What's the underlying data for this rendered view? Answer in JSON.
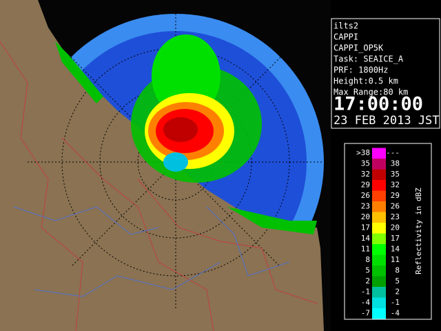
{
  "info": {
    "lines": [
      "ilts2",
      "CAPPI",
      "CAPPI_OP5K",
      "Task: SEAICE_A",
      "PRF: 1800Hz",
      "Height:0.5 km",
      "Max Range:80 km"
    ],
    "time": "17:00:00",
    "date": "23 FEB 2013 JST"
  },
  "legend": {
    "title": "Reflectivity in dBZ",
    "rows": [
      {
        "low": ">38",
        "high": "---",
        "color": "#ff00ff"
      },
      {
        "low": "35",
        "high": "38",
        "color": "#c00060"
      },
      {
        "low": "32",
        "high": "35",
        "color": "#c00000"
      },
      {
        "low": "29",
        "high": "32",
        "color": "#ff0000"
      },
      {
        "low": "26",
        "high": "29",
        "color": "#ff4000"
      },
      {
        "low": "23",
        "high": "26",
        "color": "#ff8000"
      },
      {
        "low": "20",
        "high": "23",
        "color": "#ffc000"
      },
      {
        "low": "17",
        "high": "20",
        "color": "#ffff00"
      },
      {
        "low": "14",
        "high": "17",
        "color": "#80ff00"
      },
      {
        "low": "11",
        "high": "14",
        "color": "#00ff00"
      },
      {
        "low": "8",
        "high": "11",
        "color": "#00e000"
      },
      {
        "low": "5",
        "high": "8",
        "color": "#00c000"
      },
      {
        "low": "2",
        "high": "5",
        "color": "#00a000"
      },
      {
        "low": "-1",
        "high": "2",
        "color": "#00c0a0"
      },
      {
        "low": "-4",
        "high": "-1",
        "color": "#00e0e0"
      },
      {
        "low": "-7",
        "high": "-4",
        "color": "#00ffff"
      }
    ]
  }
}
